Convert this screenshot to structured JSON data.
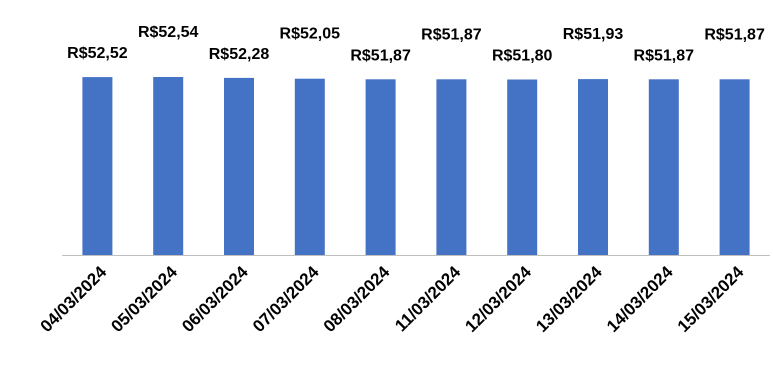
{
  "chart_data": {
    "type": "bar",
    "categories": [
      "04/03/2024",
      "05/03/2024",
      "06/03/2024",
      "07/03/2024",
      "08/03/2024",
      "11/03/2024",
      "12/03/2024",
      "13/03/2024",
      "14/03/2024",
      "15/03/2024"
    ],
    "values": [
      52.52,
      52.54,
      52.28,
      52.05,
      51.87,
      51.87,
      51.8,
      51.93,
      51.87,
      51.87
    ],
    "data_labels": [
      "R$52,52",
      "R$52,54",
      "R$52,28",
      "R$52,05",
      "R$51,87",
      "R$51,87",
      "R$51,80",
      "R$51,93",
      "R$51,87",
      "R$51,87"
    ],
    "title": "",
    "xlabel": "",
    "ylabel": "",
    "ylim": [
      0,
      52.54
    ],
    "grid": false,
    "legend": "none",
    "bar_color": "#4472C4"
  }
}
